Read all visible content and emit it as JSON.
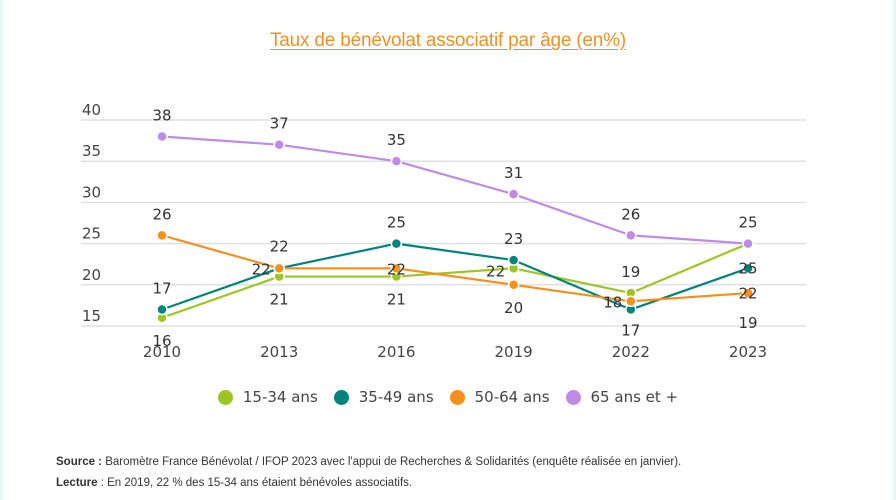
{
  "chart_data": {
    "type": "line",
    "title": "Taux de bénévolat associatif par âge (en%)",
    "xlabel": "",
    "ylabel": "",
    "x": [
      "2010",
      "2013",
      "2016",
      "2019",
      "2022",
      "2023"
    ],
    "ylim": [
      15,
      40
    ],
    "yticks": [
      "40",
      "35",
      "30",
      "25",
      "20",
      "15"
    ],
    "yticks_values": [
      40,
      35,
      30,
      25,
      20,
      15
    ],
    "grid": true,
    "legend_position": "bottom",
    "series": [
      {
        "name": "15-34 ans",
        "color": "#9DC524",
        "values": [
          16,
          21,
          21,
          22,
          19,
          25
        ]
      },
      {
        "name": "35-49 ans",
        "color": "#00837A",
        "values": [
          17,
          22,
          25,
          23,
          17,
          22
        ]
      },
      {
        "name": "50-64 ans",
        "color": "#F5901E",
        "values": [
          26,
          22,
          22,
          20,
          18,
          19
        ]
      },
      {
        "name": "65 ans et +",
        "color": "#BF8BE6",
        "values": [
          38,
          37,
          35,
          31,
          26,
          25
        ]
      }
    ]
  },
  "title_color": "#E8922A",
  "notes": {
    "source_label": "Source :",
    "source_text": " Baromètre France Bénévolat / IFOP 2023 avec l'appui de Recherches & Solidarités (enquête réalisée en janvier).",
    "lecture_label": "Lecture",
    "lecture_text": " : En 2019, 22 % des 15-34 ans étaient bénévoles associatifs."
  }
}
